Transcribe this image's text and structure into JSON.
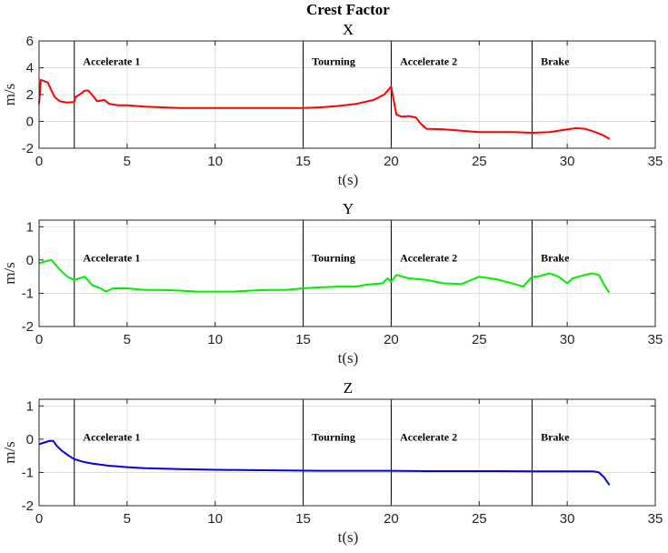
{
  "figure": {
    "title": "Crest Factor"
  },
  "chart_data": [
    {
      "type": "line",
      "title": "X",
      "xlabel": "t(s)",
      "ylabel": "m/s",
      "xlim": [
        0,
        35
      ],
      "ylim": [
        -2,
        6
      ],
      "xticks": [
        0,
        5,
        10,
        15,
        20,
        25,
        30,
        35
      ],
      "yticks": [
        -2,
        0,
        2,
        4,
        6
      ],
      "grid": true,
      "color": "#ff0000",
      "phase_lines": [
        2,
        15,
        20,
        28
      ],
      "phase_labels": [
        {
          "text": "Accelerate 1",
          "x": 2.5,
          "y": 4.2
        },
        {
          "text": "Tourning",
          "x": 15.5,
          "y": 4.2
        },
        {
          "text": "Accelerate 2",
          "x": 20.5,
          "y": 4.2
        },
        {
          "text": "Brake",
          "x": 28.5,
          "y": 4.2
        }
      ],
      "series": [
        {
          "x": [
            0,
            0.1,
            0.3,
            0.5,
            0.7,
            0.9,
            1.2,
            1.6,
            2,
            2.05,
            2.3,
            2.6,
            2.8,
            3.0,
            3.3,
            3.7,
            4.0,
            4.5,
            5,
            6,
            7,
            8,
            9,
            10,
            11,
            12,
            13,
            14,
            15,
            16,
            17,
            18,
            19,
            19.6,
            20,
            20.05,
            20.3,
            20.6,
            21,
            21.4,
            21.7,
            22,
            23,
            24,
            25,
            26,
            27,
            28,
            29,
            30,
            30.5,
            31,
            31.5,
            32,
            32.4
          ],
          "y": [
            1.3,
            3.1,
            3.0,
            2.9,
            2.3,
            1.8,
            1.5,
            1.4,
            1.45,
            1.8,
            2.0,
            2.3,
            2.3,
            2.0,
            1.5,
            1.6,
            1.3,
            1.2,
            1.2,
            1.1,
            1.05,
            1.0,
            1.0,
            1.0,
            1.0,
            1.0,
            1.0,
            1.0,
            1.0,
            1.05,
            1.15,
            1.3,
            1.6,
            2.0,
            2.6,
            2.2,
            0.5,
            0.35,
            0.4,
            0.3,
            -0.2,
            -0.55,
            -0.6,
            -0.7,
            -0.8,
            -0.8,
            -0.8,
            -0.85,
            -0.8,
            -0.6,
            -0.5,
            -0.55,
            -0.75,
            -1.0,
            -1.3
          ]
        }
      ]
    },
    {
      "type": "line",
      "title": "Y",
      "xlabel": "t(s)",
      "ylabel": "m/s",
      "xlim": [
        0,
        35
      ],
      "ylim": [
        -2,
        1.2
      ],
      "xticks": [
        0,
        5,
        10,
        15,
        20,
        25,
        30,
        35
      ],
      "yticks": [
        -2,
        -1,
        0,
        1
      ],
      "grid": true,
      "color": "#00ee00",
      "phase_lines": [
        2,
        15,
        20,
        28
      ],
      "phase_labels": [
        {
          "text": "Accelerate 1",
          "x": 2.5,
          "y": -0.05
        },
        {
          "text": "Tourning",
          "x": 15.5,
          "y": -0.05
        },
        {
          "text": "Accelerate 2",
          "x": 20.5,
          "y": -0.05
        },
        {
          "text": "Brake",
          "x": 28.5,
          "y": -0.05
        }
      ],
      "series": [
        {
          "x": [
            0,
            0.3,
            0.7,
            1.2,
            1.6,
            2,
            2.3,
            2.6,
            3.0,
            3.5,
            3.8,
            4.2,
            5,
            6,
            7,
            8,
            9,
            10,
            11,
            12,
            13,
            14,
            15,
            16,
            17,
            18,
            18.5,
            19,
            19.5,
            19.8,
            20,
            20.3,
            21,
            22,
            23,
            24,
            25,
            26,
            27,
            27.5,
            28,
            28.3,
            29,
            29.5,
            30,
            30.3,
            31,
            31.4,
            31.8,
            32.1,
            32.4
          ],
          "y": [
            -0.1,
            -0.05,
            0.0,
            -0.3,
            -0.5,
            -0.6,
            -0.55,
            -0.5,
            -0.75,
            -0.85,
            -0.95,
            -0.85,
            -0.85,
            -0.9,
            -0.9,
            -0.92,
            -0.95,
            -0.95,
            -0.95,
            -0.92,
            -0.9,
            -0.9,
            -0.85,
            -0.82,
            -0.8,
            -0.8,
            -0.75,
            -0.72,
            -0.7,
            -0.55,
            -0.65,
            -0.45,
            -0.55,
            -0.6,
            -0.7,
            -0.72,
            -0.5,
            -0.58,
            -0.72,
            -0.8,
            -0.5,
            -0.5,
            -0.4,
            -0.5,
            -0.7,
            -0.55,
            -0.45,
            -0.4,
            -0.45,
            -0.75,
            -0.98
          ]
        }
      ]
    },
    {
      "type": "line",
      "title": "Z",
      "xlabel": "t(s)",
      "ylabel": "m/s",
      "xlim": [
        0,
        35
      ],
      "ylim": [
        -2,
        1.2
      ],
      "xticks": [
        0,
        5,
        10,
        15,
        20,
        25,
        30,
        35
      ],
      "yticks": [
        -2,
        -1,
        0,
        1
      ],
      "grid": true,
      "color": "#0000ee",
      "phase_lines": [
        2,
        15,
        20,
        28
      ],
      "phase_labels": [
        {
          "text": "Accelerate 1",
          "x": 2.5,
          "y": -0.05
        },
        {
          "text": "Tourning",
          "x": 15.5,
          "y": -0.05
        },
        {
          "text": "Accelerate 2",
          "x": 20.5,
          "y": -0.05
        },
        {
          "text": "Brake",
          "x": 28.5,
          "y": -0.05
        }
      ],
      "series": [
        {
          "x": [
            0,
            0.3,
            0.6,
            0.8,
            1.0,
            1.3,
            1.7,
            2.0,
            2.5,
            3,
            4,
            5,
            6,
            8,
            10,
            12,
            14,
            16,
            18,
            20,
            22,
            24,
            26,
            28,
            30,
            31,
            31.5,
            31.8,
            32.1,
            32.4
          ],
          "y": [
            -0.15,
            -0.1,
            -0.05,
            -0.05,
            -0.2,
            -0.35,
            -0.5,
            -0.6,
            -0.68,
            -0.73,
            -0.8,
            -0.84,
            -0.87,
            -0.9,
            -0.92,
            -0.93,
            -0.94,
            -0.95,
            -0.95,
            -0.95,
            -0.96,
            -0.96,
            -0.96,
            -0.97,
            -0.97,
            -0.97,
            -0.97,
            -1.0,
            -1.15,
            -1.38
          ]
        }
      ]
    }
  ]
}
